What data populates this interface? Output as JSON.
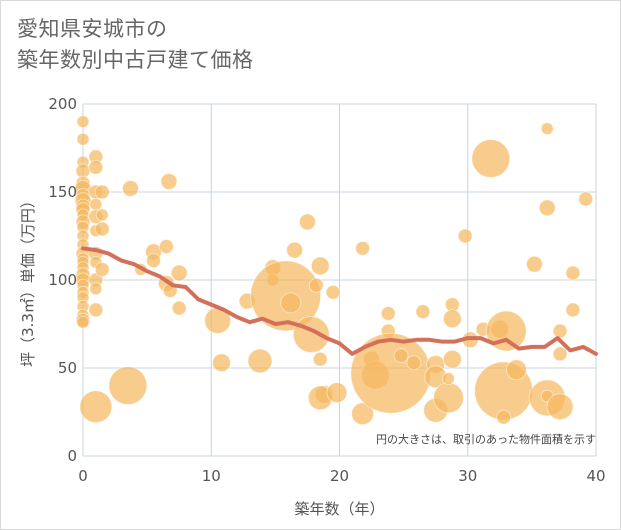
{
  "title_line1": "愛知県安城市の",
  "title_line2": "築年数別中古戸建て価格",
  "chart_data": {
    "type": "scatter",
    "title": "愛知県安城市の 築年数別中古戸建て価格",
    "xlabel": "築年数（年）",
    "ylabel": "坪（3.3㎡）単価（万円）",
    "xlim": [
      0,
      40
    ],
    "ylim": [
      0,
      200
    ],
    "xticks": [
      0,
      10,
      20,
      30,
      40
    ],
    "yticks": [
      0,
      50,
      100,
      150,
      200
    ],
    "grid": true,
    "annotation": "円の大きさは、取引のあった物件面積を示す",
    "colors": {
      "bubble": "#f5b960",
      "line": "#d4705a",
      "grid": "#c8d4dc"
    },
    "points": [
      {
        "x": 0,
        "y": 190,
        "s": 6
      },
      {
        "x": 0,
        "y": 180,
        "s": 6
      },
      {
        "x": 0,
        "y": 167,
        "s": 6
      },
      {
        "x": 0,
        "y": 162,
        "s": 7
      },
      {
        "x": 0,
        "y": 155,
        "s": 7
      },
      {
        "x": 0,
        "y": 152,
        "s": 8
      },
      {
        "x": 0,
        "y": 148,
        "s": 7
      },
      {
        "x": 0,
        "y": 145,
        "s": 8
      },
      {
        "x": 0,
        "y": 142,
        "s": 7
      },
      {
        "x": 0,
        "y": 140,
        "s": 7
      },
      {
        "x": 0,
        "y": 137,
        "s": 6
      },
      {
        "x": 0,
        "y": 133,
        "s": 7
      },
      {
        "x": 0,
        "y": 130,
        "s": 6
      },
      {
        "x": 0,
        "y": 125,
        "s": 6
      },
      {
        "x": 0,
        "y": 120,
        "s": 6
      },
      {
        "x": 0,
        "y": 115,
        "s": 7
      },
      {
        "x": 0,
        "y": 112,
        "s": 6
      },
      {
        "x": 0,
        "y": 110,
        "s": 6
      },
      {
        "x": 0,
        "y": 107,
        "s": 6
      },
      {
        "x": 0,
        "y": 103,
        "s": 7
      },
      {
        "x": 0,
        "y": 100,
        "s": 7
      },
      {
        "x": 0,
        "y": 97,
        "s": 6
      },
      {
        "x": 0,
        "y": 93,
        "s": 6
      },
      {
        "x": 0,
        "y": 90,
        "s": 6
      },
      {
        "x": 0,
        "y": 85,
        "s": 6
      },
      {
        "x": 0,
        "y": 80,
        "s": 6
      },
      {
        "x": 0,
        "y": 77,
        "s": 7
      },
      {
        "x": 0,
        "y": 76,
        "s": 6
      },
      {
        "x": 1,
        "y": 170,
        "s": 7
      },
      {
        "x": 1,
        "y": 164,
        "s": 7
      },
      {
        "x": 1,
        "y": 150,
        "s": 7
      },
      {
        "x": 1,
        "y": 143,
        "s": 6
      },
      {
        "x": 1,
        "y": 136,
        "s": 7
      },
      {
        "x": 1,
        "y": 128,
        "s": 6
      },
      {
        "x": 1,
        "y": 115,
        "s": 7
      },
      {
        "x": 1,
        "y": 110,
        "s": 6
      },
      {
        "x": 1,
        "y": 100,
        "s": 7
      },
      {
        "x": 1,
        "y": 95,
        "s": 6
      },
      {
        "x": 1,
        "y": 83,
        "s": 7
      },
      {
        "x": 1,
        "y": 28,
        "s": 16
      },
      {
        "x": 1.5,
        "y": 150,
        "s": 7
      },
      {
        "x": 1.5,
        "y": 137,
        "s": 6
      },
      {
        "x": 1.5,
        "y": 129,
        "s": 7
      },
      {
        "x": 1.5,
        "y": 106,
        "s": 7
      },
      {
        "x": 3.5,
        "y": 40,
        "s": 19
      },
      {
        "x": 3.7,
        "y": 152,
        "s": 8
      },
      {
        "x": 4.5,
        "y": 106,
        "s": 6
      },
      {
        "x": 5.5,
        "y": 116,
        "s": 8
      },
      {
        "x": 5.5,
        "y": 111,
        "s": 7
      },
      {
        "x": 6.5,
        "y": 119,
        "s": 7
      },
      {
        "x": 6.5,
        "y": 98,
        "s": 8
      },
      {
        "x": 6.7,
        "y": 156,
        "s": 8
      },
      {
        "x": 6.8,
        "y": 94,
        "s": 7
      },
      {
        "x": 7.5,
        "y": 104,
        "s": 8
      },
      {
        "x": 7.5,
        "y": 84,
        "s": 7
      },
      {
        "x": 10.5,
        "y": 77,
        "s": 13
      },
      {
        "x": 10.8,
        "y": 53,
        "s": 9
      },
      {
        "x": 12.8,
        "y": 88,
        "s": 8
      },
      {
        "x": 13.8,
        "y": 54,
        "s": 12
      },
      {
        "x": 14.8,
        "y": 107,
        "s": 8
      },
      {
        "x": 14.8,
        "y": 100,
        "s": 6
      },
      {
        "x": 15.8,
        "y": 91,
        "s": 35
      },
      {
        "x": 16.2,
        "y": 87,
        "s": 10
      },
      {
        "x": 16.5,
        "y": 117,
        "s": 8
      },
      {
        "x": 17.5,
        "y": 133,
        "s": 8
      },
      {
        "x": 17.8,
        "y": 69,
        "s": 18
      },
      {
        "x": 18.2,
        "y": 97,
        "s": 7
      },
      {
        "x": 18.5,
        "y": 108,
        "s": 9
      },
      {
        "x": 18.5,
        "y": 55,
        "s": 7
      },
      {
        "x": 18.8,
        "y": 35,
        "s": 9
      },
      {
        "x": 18.5,
        "y": 33,
        "s": 12
      },
      {
        "x": 19.5,
        "y": 93,
        "s": 7
      },
      {
        "x": 19.8,
        "y": 36,
        "s": 10
      },
      {
        "x": 21.8,
        "y": 118,
        "s": 7
      },
      {
        "x": 21.8,
        "y": 24,
        "s": 11
      },
      {
        "x": 22.5,
        "y": 55,
        "s": 8
      },
      {
        "x": 22.8,
        "y": 46,
        "s": 14
      },
      {
        "x": 23.8,
        "y": 71,
        "s": 7
      },
      {
        "x": 23.8,
        "y": 81,
        "s": 7
      },
      {
        "x": 24,
        "y": 47,
        "s": 40
      },
      {
        "x": 24.8,
        "y": 57,
        "s": 7
      },
      {
        "x": 25.8,
        "y": 53,
        "s": 7
      },
      {
        "x": 26.5,
        "y": 82,
        "s": 7
      },
      {
        "x": 27.5,
        "y": 52,
        "s": 9
      },
      {
        "x": 27.5,
        "y": 45,
        "s": 11
      },
      {
        "x": 27.5,
        "y": 26,
        "s": 12
      },
      {
        "x": 28.5,
        "y": 33,
        "s": 15
      },
      {
        "x": 28.5,
        "y": 44,
        "s": 6
      },
      {
        "x": 28.8,
        "y": 86,
        "s": 7
      },
      {
        "x": 28.8,
        "y": 55,
        "s": 9
      },
      {
        "x": 28.8,
        "y": 78,
        "s": 9
      },
      {
        "x": 29.8,
        "y": 125,
        "s": 7
      },
      {
        "x": 30.2,
        "y": 66,
        "s": 8
      },
      {
        "x": 31.2,
        "y": 72,
        "s": 7
      },
      {
        "x": 31.8,
        "y": 169,
        "s": 19
      },
      {
        "x": 32.5,
        "y": 72,
        "s": 9
      },
      {
        "x": 32.8,
        "y": 37,
        "s": 29
      },
      {
        "x": 33,
        "y": 71,
        "s": 20
      },
      {
        "x": 32.8,
        "y": 22,
        "s": 7
      },
      {
        "x": 33.8,
        "y": 49,
        "s": 10
      },
      {
        "x": 35.2,
        "y": 109,
        "s": 8
      },
      {
        "x": 36.2,
        "y": 186,
        "s": 6
      },
      {
        "x": 36.2,
        "y": 141,
        "s": 8
      },
      {
        "x": 36.2,
        "y": 33,
        "s": 18
      },
      {
        "x": 36.2,
        "y": 34,
        "s": 6
      },
      {
        "x": 37.2,
        "y": 71,
        "s": 7
      },
      {
        "x": 37.2,
        "y": 28,
        "s": 13
      },
      {
        "x": 37.2,
        "y": 58,
        "s": 7
      },
      {
        "x": 38.2,
        "y": 104,
        "s": 7
      },
      {
        "x": 38.2,
        "y": 83,
        "s": 7
      },
      {
        "x": 39.2,
        "y": 146,
        "s": 7
      }
    ],
    "trend": {
      "x": [
        0,
        1,
        2,
        3,
        4,
        5,
        6,
        7,
        8,
        9,
        10,
        11,
        12,
        13,
        14,
        15,
        16,
        17,
        18,
        19,
        20,
        21,
        22,
        23,
        24,
        25,
        26,
        27,
        28,
        29,
        30,
        31,
        32,
        33,
        34,
        35,
        36,
        37,
        38,
        39,
        40
      ],
      "y": [
        118,
        117,
        115,
        111,
        109,
        105,
        102,
        97,
        96,
        89,
        86,
        83,
        79,
        76,
        78,
        75,
        76,
        74,
        71,
        67,
        64,
        58,
        62,
        65,
        66,
        65,
        66,
        66,
        65,
        65,
        67,
        67,
        64,
        66,
        61,
        62,
        62,
        67,
        60,
        62,
        58
      ]
    }
  }
}
